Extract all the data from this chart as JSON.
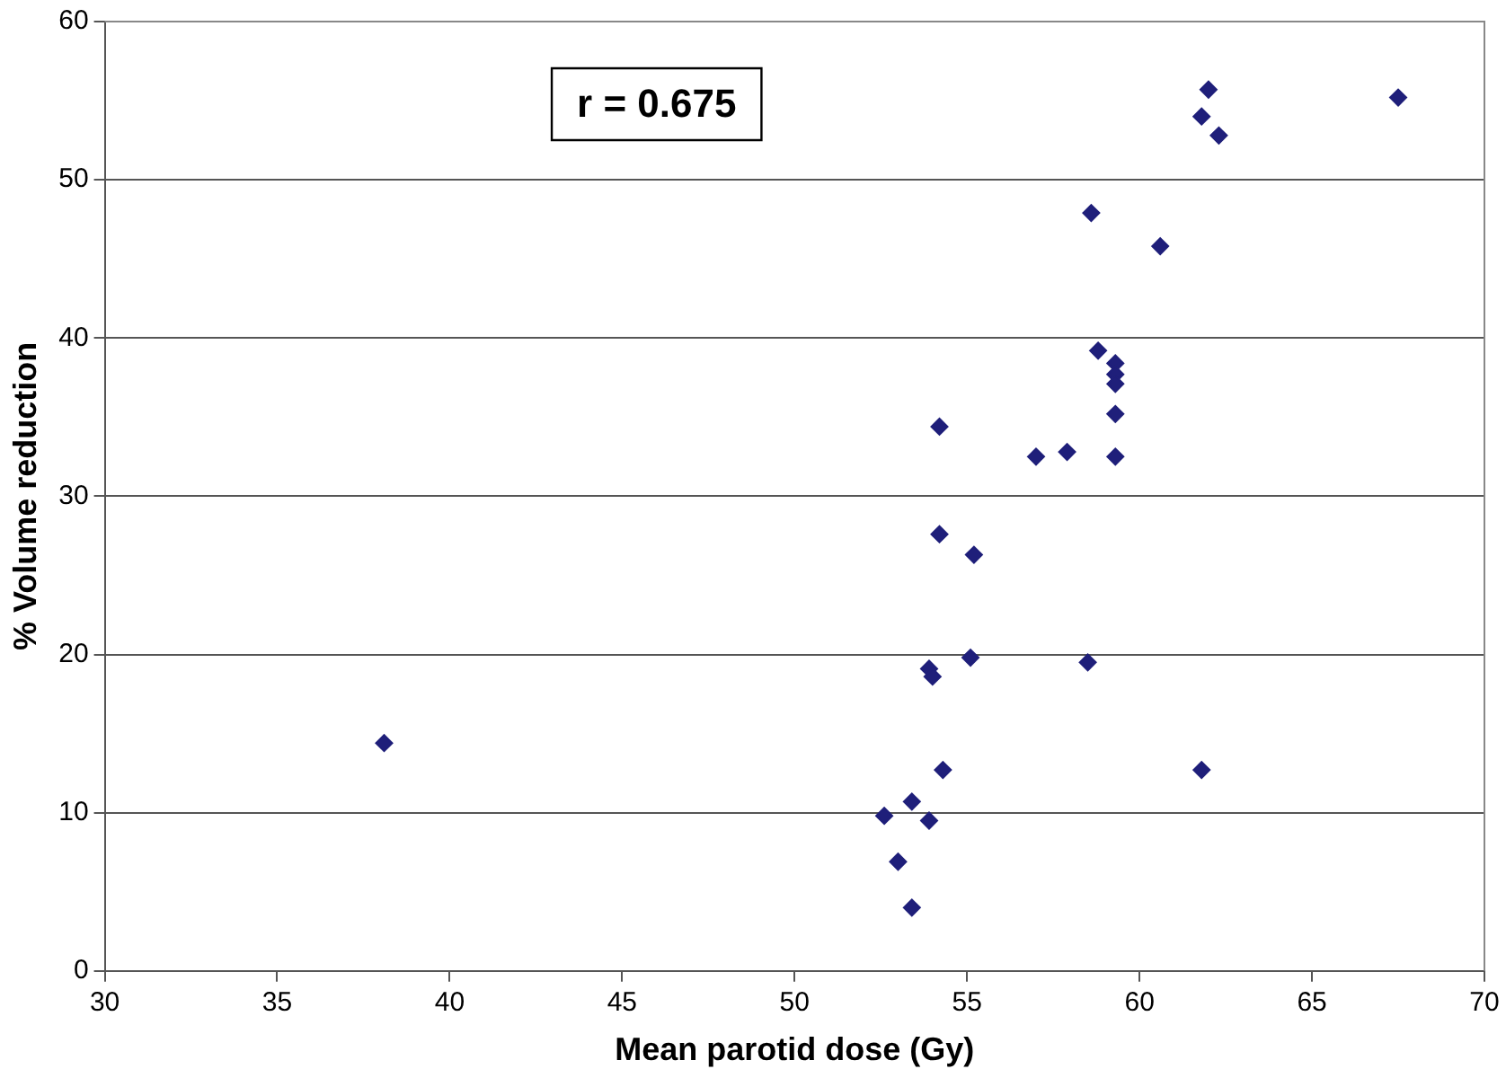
{
  "chart_data": {
    "type": "scatter",
    "xlabel": "Mean parotid dose (Gy)",
    "ylabel": "% Volume reduction",
    "annotations": [
      "r = 0.675"
    ],
    "x": [
      38.1,
      52.6,
      53.0,
      53.4,
      53.4,
      53.9,
      53.9,
      54.0,
      54.2,
      54.2,
      54.3,
      55.1,
      55.2,
      57.0,
      57.9,
      58.5,
      58.6,
      58.8,
      59.3,
      59.3,
      59.3,
      59.3,
      59.3,
      60.6,
      61.8,
      61.8,
      62.0,
      62.3,
      67.5
    ],
    "series": [
      {
        "color": "#1f1f7a",
        "values": [
          14.4,
          9.8,
          6.9,
          4.0,
          10.7,
          9.5,
          19.1,
          18.6,
          34.4,
          27.6,
          12.7,
          19.8,
          26.3,
          32.5,
          32.8,
          19.5,
          47.9,
          39.2,
          38.4,
          37.7,
          37.1,
          35.2,
          32.5,
          45.8,
          12.7,
          54.0,
          55.7,
          52.8,
          55.2
        ]
      }
    ],
    "xlim": [
      30,
      70
    ],
    "xticks": [
      30,
      35,
      40,
      45,
      50,
      55,
      60,
      65,
      70
    ],
    "ylim": [
      0,
      60
    ],
    "yticks": [
      0,
      10,
      20,
      30,
      40,
      50,
      60
    ],
    "grid": "y",
    "legend": false,
    "marker": "diamond"
  }
}
